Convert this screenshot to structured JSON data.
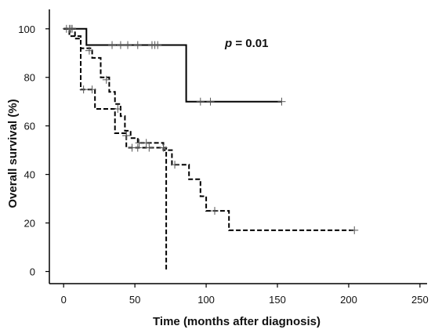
{
  "chart_data": {
    "type": "line",
    "title": "",
    "xlabel": "Time (months after diagnosis)",
    "ylabel": "Overall survival (%)",
    "xlim": [
      -10,
      255
    ],
    "ylim": [
      -5,
      108
    ],
    "xticks": [
      0,
      50,
      100,
      150,
      200,
      250
    ],
    "yticks": [
      0,
      20,
      40,
      60,
      80,
      100
    ],
    "grid": false,
    "legend": "none",
    "annotation": {
      "prefix": "p",
      "rest": " = 0.01"
    },
    "series": [
      {
        "style": "solid",
        "color": "#000000",
        "steps": [
          [
            0,
            100
          ],
          [
            16,
            100
          ],
          [
            16,
            93.3
          ],
          [
            86,
            93.3
          ],
          [
            86,
            70
          ],
          [
            153,
            70
          ]
        ],
        "censored": [
          [
            2,
            100
          ],
          [
            4,
            100
          ],
          [
            6,
            100
          ],
          [
            34,
            93.3
          ],
          [
            40,
            93.3
          ],
          [
            45,
            93.3
          ],
          [
            52,
            93.3
          ],
          [
            62,
            93.3
          ],
          [
            64,
            93.3
          ],
          [
            66,
            93.3
          ],
          [
            96,
            70
          ],
          [
            103,
            70
          ],
          [
            153,
            70
          ]
        ]
      },
      {
        "style": "dashed",
        "color": "#000000",
        "steps": [
          [
            0,
            100
          ],
          [
            8,
            100
          ],
          [
            8,
            96
          ],
          [
            12,
            96
          ],
          [
            12,
            92
          ],
          [
            20,
            92
          ],
          [
            20,
            88
          ],
          [
            26,
            88
          ],
          [
            26,
            80
          ],
          [
            32,
            80
          ],
          [
            32,
            74
          ],
          [
            36,
            74
          ],
          [
            36,
            69
          ],
          [
            40,
            69
          ],
          [
            40,
            64
          ],
          [
            43,
            64
          ],
          [
            43,
            58
          ],
          [
            47,
            58
          ],
          [
            47,
            55
          ],
          [
            52,
            55
          ],
          [
            52,
            53
          ],
          [
            70,
            53
          ],
          [
            70,
            50
          ],
          [
            76,
            50
          ],
          [
            76,
            44
          ],
          [
            88,
            44
          ],
          [
            88,
            38
          ],
          [
            96,
            38
          ],
          [
            96,
            31
          ],
          [
            100,
            31
          ],
          [
            100,
            25
          ],
          [
            116,
            25
          ],
          [
            116,
            17
          ],
          [
            204,
            17
          ]
        ],
        "censored": [
          [
            5,
            100
          ],
          [
            18,
            91
          ],
          [
            30,
            79
          ],
          [
            44,
            56
          ],
          [
            53,
            53
          ],
          [
            58,
            53
          ],
          [
            78,
            44
          ],
          [
            106,
            25
          ],
          [
            204,
            17
          ]
        ]
      },
      {
        "style": "dashed",
        "color": "#000000",
        "steps": [
          [
            0,
            100
          ],
          [
            4,
            100
          ],
          [
            4,
            97
          ],
          [
            12,
            97
          ],
          [
            12,
            75
          ],
          [
            22,
            75
          ],
          [
            22,
            67
          ],
          [
            36,
            67
          ],
          [
            36,
            57
          ],
          [
            44,
            57
          ],
          [
            44,
            51
          ],
          [
            72,
            51
          ],
          [
            72,
            0
          ]
        ],
        "censored": [
          [
            14,
            75
          ],
          [
            20,
            75
          ],
          [
            38,
            67
          ],
          [
            44,
            56
          ],
          [
            48,
            51
          ],
          [
            52,
            51
          ],
          [
            60,
            51
          ],
          [
            70,
            51
          ]
        ]
      }
    ]
  }
}
